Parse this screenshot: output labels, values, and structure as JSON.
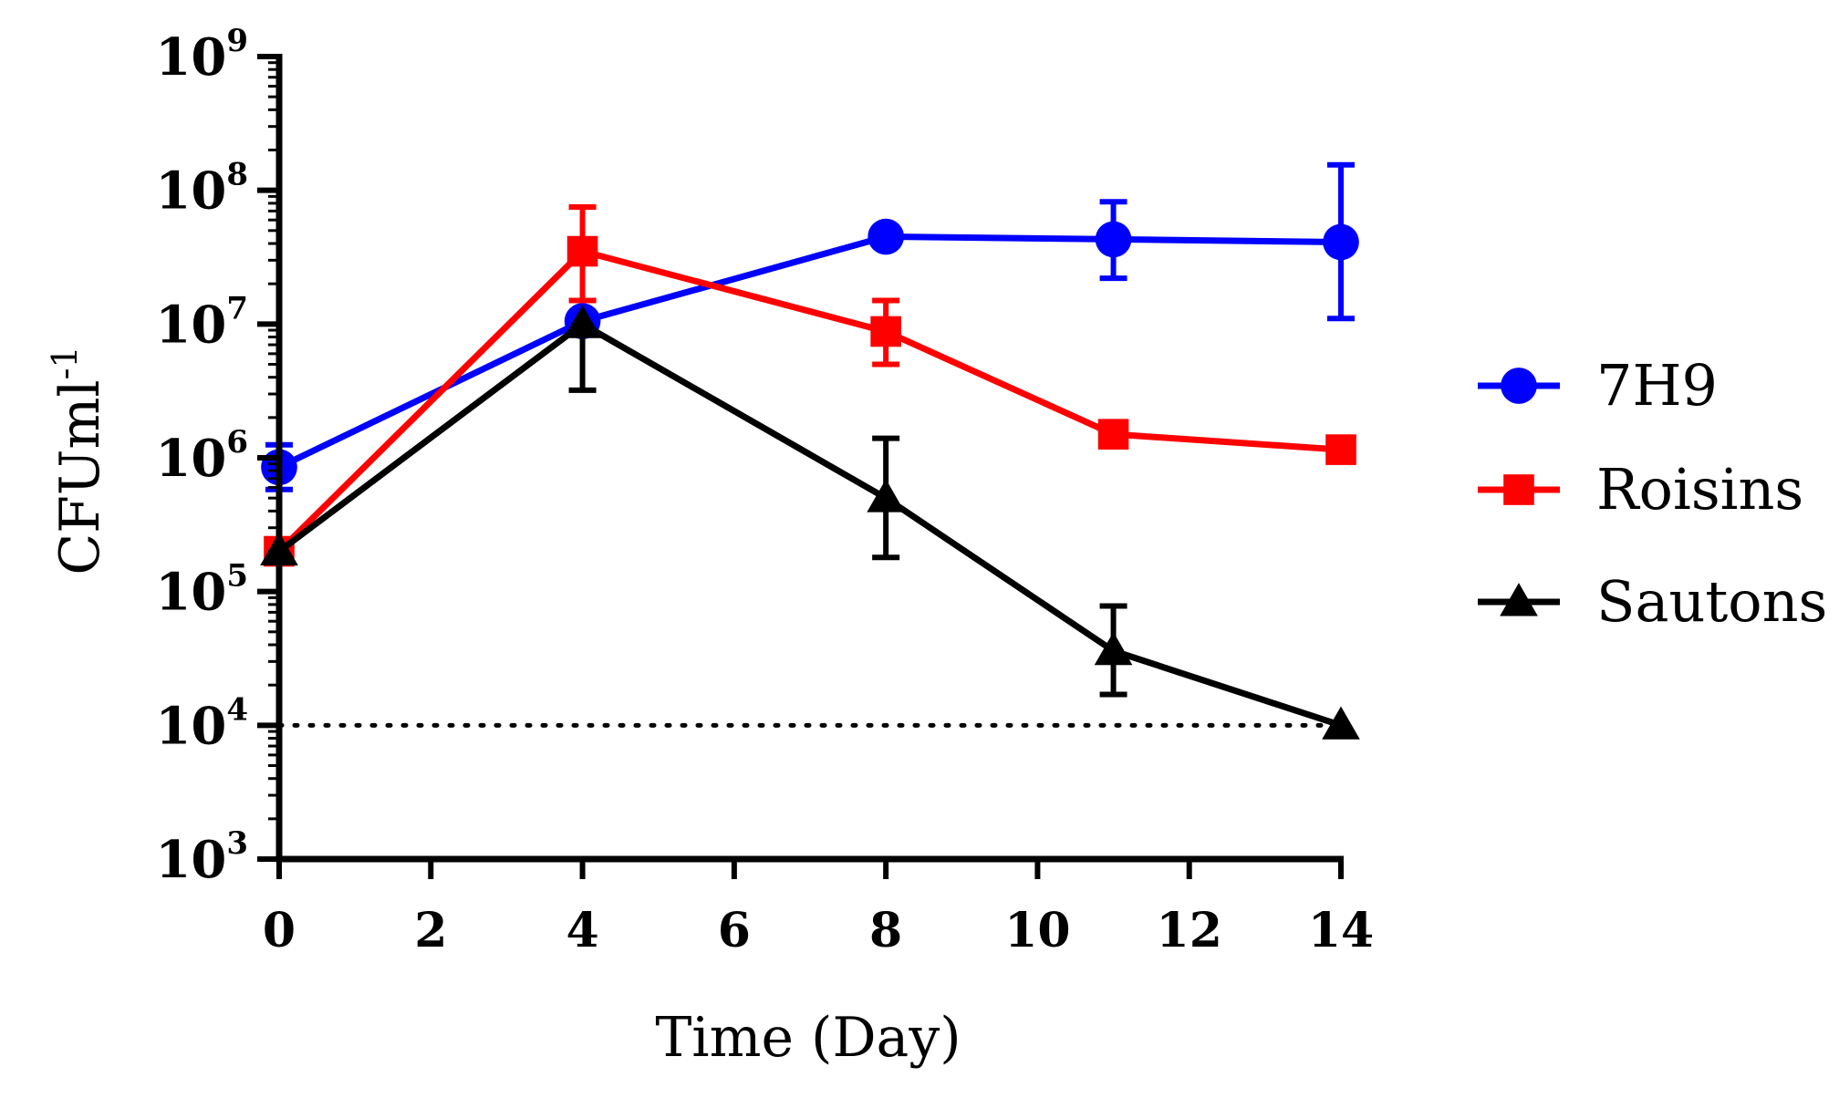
{
  "chart_data": {
    "type": "line",
    "title": "",
    "xlabel": "Time (Day)",
    "ylabel": {
      "base": "CFUml",
      "sup": "-1"
    },
    "xlim": [
      0,
      14
    ],
    "x_ticks": [
      "0",
      "2",
      "4",
      "6",
      "8",
      "10",
      "12",
      "14"
    ],
    "y_scale": "log",
    "ylim": [
      1000,
      1000000000
    ],
    "y_ticks": [
      {
        "base": "10",
        "exp": "3"
      },
      {
        "base": "10",
        "exp": "4"
      },
      {
        "base": "10",
        "exp": "5"
      },
      {
        "base": "10",
        "exp": "6"
      },
      {
        "base": "10",
        "exp": "7"
      },
      {
        "base": "10",
        "exp": "8"
      },
      {
        "base": "10",
        "exp": "9"
      }
    ],
    "legend_position": "right",
    "detection_limit": 10000,
    "series": [
      {
        "name": "7H9",
        "color": "#0000ff",
        "marker": "circle",
        "x": [
          0,
          4,
          8,
          11,
          14
        ],
        "y": [
          850000,
          10500000,
          45000000,
          43000000,
          41000000
        ],
        "err_low": [
          580000,
          null,
          null,
          22000000,
          11000000
        ],
        "err_high": [
          1250000,
          null,
          null,
          82000000,
          155000000
        ]
      },
      {
        "name": "Roisins",
        "color": "#ff0000",
        "marker": "square",
        "x": [
          0,
          4,
          8,
          11,
          14
        ],
        "y": [
          200000,
          35000000,
          8800000,
          1500000,
          1150000
        ],
        "err_low": [
          null,
          15000000,
          5000000,
          null,
          null
        ],
        "err_high": [
          null,
          75000000,
          15000000,
          null,
          null
        ]
      },
      {
        "name": "Sautons",
        "color": "#000000",
        "marker": "triangle",
        "x": [
          0,
          4,
          8,
          11,
          14
        ],
        "y": [
          200000,
          10000000,
          500000,
          36000,
          10000
        ],
        "err_low": [
          null,
          3200000,
          180000,
          17000,
          null
        ],
        "err_high": [
          null,
          null,
          1400000,
          78000,
          null
        ]
      }
    ]
  }
}
